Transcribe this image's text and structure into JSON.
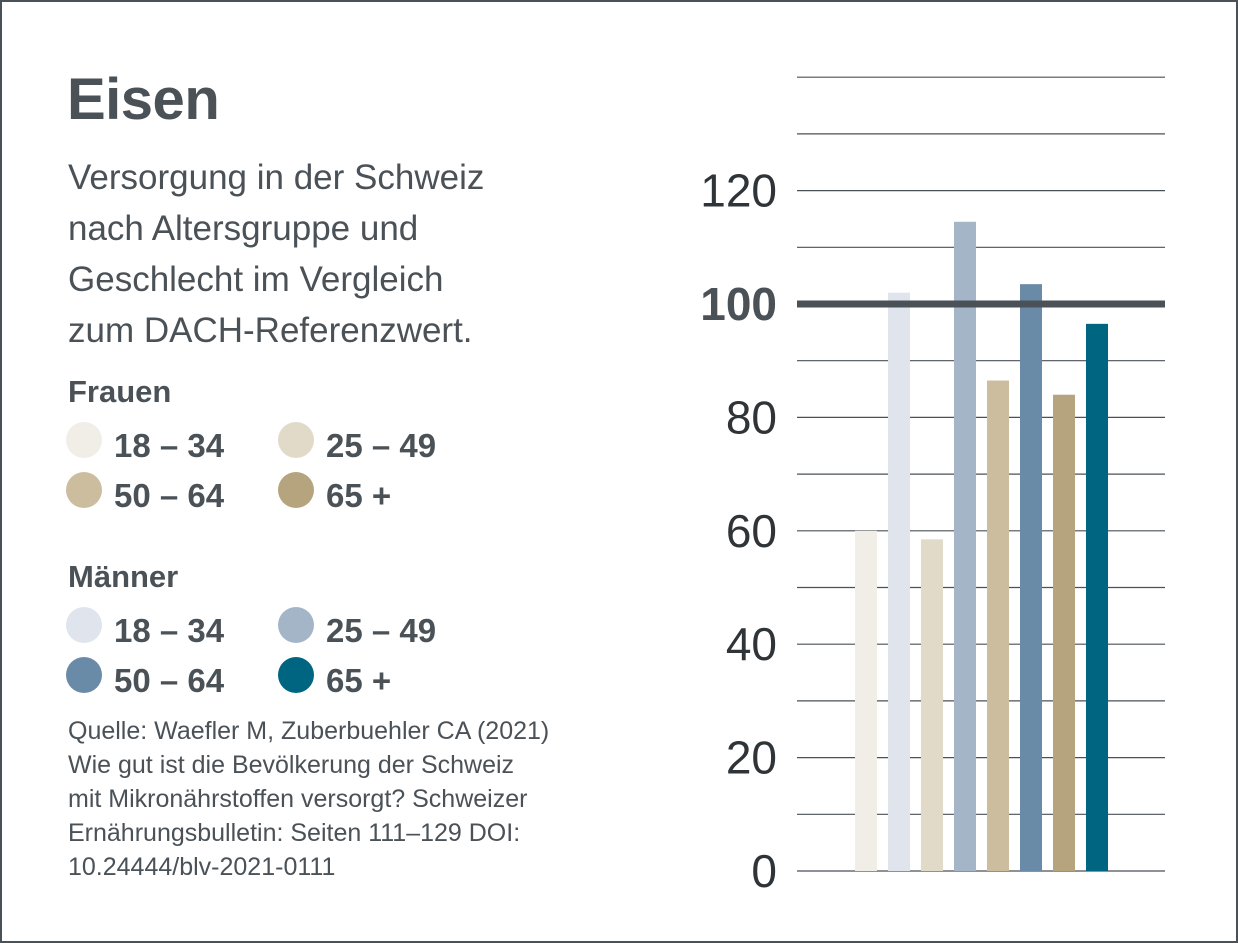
{
  "title": "Eisen",
  "subtitle": "Versorgung in der Schweiz\nnach Altersgruppe und\nGeschlecht im Vergleich\nzum DACH-Referenzwert.",
  "legend": {
    "frauen": {
      "heading": "Frauen",
      "items": [
        {
          "label": "18 – 34",
          "color": "#f1eee8"
        },
        {
          "label": "25 – 49",
          "color": "#e2dac9"
        },
        {
          "label": "50 – 64",
          "color": "#ccbd9f"
        },
        {
          "label": "65 +",
          "color": "#b5a47e"
        }
      ]
    },
    "maenner": {
      "heading": "Männer",
      "items": [
        {
          "label": "18 – 34",
          "color": "#dfe4ed"
        },
        {
          "label": "25 – 49",
          "color": "#a3b5c7"
        },
        {
          "label": "50 – 64",
          "color": "#6a8ba8"
        },
        {
          "label": "65 +",
          "color": "#006580"
        }
      ]
    }
  },
  "source": "Quelle: Waefler M, Zuberbuehler CA (2021)\nWie gut ist die Bevölkerung der Schweiz\nmit Mikronährstoffen versorgt? Schweizer\nErnährungsbulletin: Seiten 111–129 DOI:\n10.24444/blv-2021-0111",
  "chart_data": {
    "type": "bar",
    "title": "Eisen",
    "categories": [
      "Frauen 18 – 34",
      "Männer 18 – 34",
      "Frauen 25 – 49",
      "Männer 25 – 49",
      "Frauen 50 – 64",
      "Männer 50 – 64",
      "Frauen 65 +",
      "Männer 65 +"
    ],
    "values": [
      60,
      102,
      58.5,
      114.5,
      86.5,
      103.5,
      84,
      96.5
    ],
    "colors": [
      "#f1eee8",
      "#dfe4ed",
      "#e2dac9",
      "#a3b5c7",
      "#ccbd9f",
      "#6a8ba8",
      "#b5a47e",
      "#006580"
    ],
    "ylim": [
      0,
      140
    ],
    "yticks": [
      0,
      20,
      40,
      60,
      80,
      100,
      120
    ],
    "grid_step": 10,
    "reference_line": 100,
    "xlabel": "",
    "ylabel": ""
  }
}
